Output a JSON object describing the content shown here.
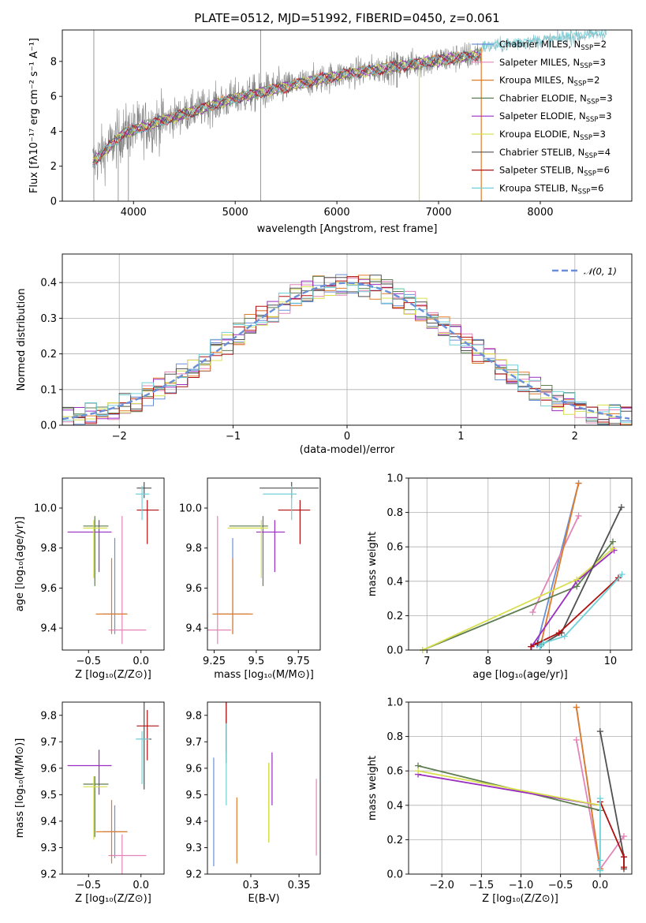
{
  "chart_data": [
    {
      "id": "spectrum",
      "type": "line",
      "title": "PLATE=0512, MJD=51992, FIBERID=0450, z=0.061",
      "xlabel": "wavelength [Angstrom, rest frame]",
      "ylabel": "Flux [fλ10⁻¹⁷ erg cm⁻² s⁻¹ A⁻¹]",
      "xlim": [
        3300,
        8900
      ],
      "ylim": [
        0,
        9.8
      ],
      "xticks": [
        4000,
        5000,
        6000,
        7000,
        8000
      ],
      "yticks": [
        0,
        2,
        4,
        6,
        8
      ],
      "data_color": "#808080",
      "data_range": [
        3600,
        8650
      ],
      "legend_position": "upper-right",
      "series": [
        {
          "name": "Chabrier MILES, N",
          "sub": "SSP",
          "suffix": "=2",
          "color": "#6a8fd8"
        },
        {
          "name": "Salpeter MILES, N",
          "sub": "SSP",
          "suffix": "=3",
          "color": "#e284b8"
        },
        {
          "name": "Kroupa MILES, N",
          "sub": "SSP",
          "suffix": "=2",
          "color": "#e07b28"
        },
        {
          "name": "Chabrier ELODIE, N",
          "sub": "SSP",
          "suffix": "=3",
          "color": "#5e7d50"
        },
        {
          "name": "Salpeter ELODIE, N",
          "sub": "SSP",
          "suffix": "=3",
          "color": "#9a2ec0"
        },
        {
          "name": "Kroupa ELODIE, N",
          "sub": "SSP",
          "suffix": "=3",
          "color": "#d8e050"
        },
        {
          "name": "Chabrier STELIB, N",
          "sub": "SSP",
          "suffix": "=4",
          "color": "#505050"
        },
        {
          "name": "Salpeter STELIB, N",
          "sub": "SSP",
          "suffix": "=6",
          "color": "#b01010"
        },
        {
          "name": "Kroupa STELIB, N",
          "sub": "SSP",
          "suffix": "=6",
          "color": "#70d0d8"
        }
      ]
    },
    {
      "id": "residuals",
      "type": "histogram",
      "xlabel": "(data-model)/error",
      "ylabel": "Normed distribution",
      "xlim": [
        -2.5,
        2.5
      ],
      "ylim": [
        0,
        0.48
      ],
      "xticks": [
        -2,
        -1,
        0,
        1,
        2
      ],
      "yticks": [
        0.0,
        0.1,
        0.2,
        0.3,
        0.4
      ],
      "bin_width": 0.1,
      "legend": "𝒩(0, 1)",
      "legend_position": "upper-right",
      "gaussian_color": "#6a8fd8"
    },
    {
      "id": "age-vs-z",
      "type": "errorbar",
      "xlabel": "Z [log₁₀(Z/Z⊙)]",
      "ylabel": "age  [log₁₀(age/yr)]",
      "xlim": [
        -0.75,
        0.22
      ],
      "ylim": [
        9.29,
        10.15
      ],
      "xticks": [
        -0.5,
        0.0
      ],
      "yticks": [
        9.4,
        9.6,
        9.8,
        10.0
      ],
      "points": [
        {
          "x": -0.25,
          "y": 9.47,
          "xerr": [
            0.12,
            0.12
          ],
          "yerr": [
            0.1,
            0.38
          ],
          "color": "#6a8fd8"
        },
        {
          "x": -0.18,
          "y": 9.39,
          "xerr": [
            0.13,
            0.23
          ],
          "yerr": [
            0.07,
            0.57
          ],
          "color": "#e284b8"
        },
        {
          "x": -0.28,
          "y": 9.47,
          "xerr": [
            0.15,
            0.15
          ],
          "yerr": [
            0.1,
            0.28
          ],
          "color": "#e07b28"
        },
        {
          "x": -0.44,
          "y": 9.91,
          "xerr": [
            0.11,
            0.13
          ],
          "yerr": [
            0.3,
            0.05
          ],
          "color": "#5e7d50"
        },
        {
          "x": -0.4,
          "y": 9.88,
          "xerr": [
            0.3,
            0.12
          ],
          "yerr": [
            0.2,
            0.06
          ],
          "color": "#9a2ec0"
        },
        {
          "x": -0.45,
          "y": 9.9,
          "xerr": [
            0.1,
            0.13
          ],
          "yerr": [
            0.25,
            0.04
          ],
          "color": "#d8e050"
        },
        {
          "x": 0.03,
          "y": 10.1,
          "xerr": [
            0.07,
            0.07
          ],
          "yerr": [
            0.05,
            0.03
          ],
          "color": "#505050"
        },
        {
          "x": 0.06,
          "y": 9.99,
          "xerr": [
            0.1,
            0.11
          ],
          "yerr": [
            0.17,
            0.05
          ],
          "color": "#b01010"
        },
        {
          "x": 0.01,
          "y": 10.07,
          "xerr": [
            0.06,
            0.07
          ],
          "yerr": [
            0.13,
            0.04
          ],
          "color": "#70d0d8"
        }
      ]
    },
    {
      "id": "age-vs-mass",
      "type": "errorbar",
      "xlabel": "mass [log₁₀(M/M⊙)]",
      "ylabel": "",
      "xlim": [
        9.21,
        9.88
      ],
      "ylim": [
        9.29,
        10.15
      ],
      "xticks": [
        9.25,
        9.5,
        9.75
      ],
      "yticks": [
        9.4,
        9.6,
        9.8,
        10.0
      ],
      "points": [
        {
          "x": 9.36,
          "y": 9.47,
          "xerr": [
            0.1,
            0.1
          ],
          "yerr": [
            0.1,
            0.38
          ],
          "color": "#6a8fd8"
        },
        {
          "x": 9.27,
          "y": 9.39,
          "xerr": [
            0.07,
            0.08
          ],
          "yerr": [
            0.07,
            0.57
          ],
          "color": "#e284b8"
        },
        {
          "x": 9.36,
          "y": 9.47,
          "xerr": [
            0.12,
            0.12
          ],
          "yerr": [
            0.1,
            0.28
          ],
          "color": "#e07b28"
        },
        {
          "x": 9.54,
          "y": 9.91,
          "xerr": [
            0.2,
            0.03
          ],
          "yerr": [
            0.3,
            0.05
          ],
          "color": "#5e7d50"
        },
        {
          "x": 9.61,
          "y": 9.88,
          "xerr": [
            0.11,
            0.06
          ],
          "yerr": [
            0.2,
            0.06
          ],
          "color": "#9a2ec0"
        },
        {
          "x": 9.53,
          "y": 9.9,
          "xerr": [
            0.2,
            0.04
          ],
          "yerr": [
            0.25,
            0.04
          ],
          "color": "#d8e050"
        },
        {
          "x": 9.71,
          "y": 10.1,
          "xerr": [
            0.19,
            0.16
          ],
          "yerr": [
            0.05,
            0.03
          ],
          "color": "#505050"
        },
        {
          "x": 9.76,
          "y": 9.99,
          "xerr": [
            0.13,
            0.06
          ],
          "yerr": [
            0.17,
            0.05
          ],
          "color": "#b01010"
        },
        {
          "x": 9.71,
          "y": 10.07,
          "xerr": [
            0.17,
            0.03
          ],
          "yerr": [
            0.13,
            0.04
          ],
          "color": "#70d0d8"
        }
      ]
    },
    {
      "id": "mass-weight-vs-age",
      "type": "line",
      "xlabel": "age  [log₁₀(age/yr)]",
      "ylabel": "mass weight",
      "xlim": [
        6.7,
        10.35
      ],
      "ylim": [
        0,
        1.0
      ],
      "xticks": [
        7,
        8,
        9,
        10
      ],
      "yticks": [
        0.0,
        0.2,
        0.4,
        0.6,
        0.8,
        1.0
      ],
      "grid": true,
      "series": [
        {
          "color": "#6a8fd8",
          "x": [
            8.8,
            9.48
          ],
          "y": [
            0.03,
            0.97
          ]
        },
        {
          "color": "#e284b8",
          "x": [
            8.73,
            9.48
          ],
          "y": [
            0.22,
            0.78
          ]
        },
        {
          "color": "#e07b28",
          "x": [
            8.86,
            9.48
          ],
          "y": [
            0.03,
            0.97
          ]
        },
        {
          "color": "#5e7d50",
          "x": [
            6.93,
            9.45,
            10.04
          ],
          "y": [
            0.0,
            0.37,
            0.63
          ]
        },
        {
          "color": "#9a2ec0",
          "x": [
            8.71,
            9.45,
            10.06
          ],
          "y": [
            0.02,
            0.4,
            0.58
          ]
        },
        {
          "color": "#d8e050",
          "x": [
            6.93,
            9.45,
            10.04
          ],
          "y": [
            0.0,
            0.41,
            0.59
          ]
        },
        {
          "color": "#505050",
          "x": [
            8.87,
            9.2,
            10.18
          ],
          "y": [
            0.03,
            0.1,
            0.83
          ]
        },
        {
          "color": "#b01010",
          "x": [
            8.7,
            8.81,
            9.16,
            10.13
          ],
          "y": [
            0.02,
            0.04,
            0.1,
            0.42
          ]
        },
        {
          "color": "#70d0d8",
          "x": [
            8.85,
            8.9,
            9.25,
            10.19
          ],
          "y": [
            0.02,
            0.04,
            0.08,
            0.44
          ]
        }
      ]
    },
    {
      "id": "mass-vs-z",
      "type": "errorbar",
      "xlabel": "Z [log₁₀(Z/Z⊙)]",
      "ylabel": "mass [log₁₀(M/M⊙)]",
      "xlim": [
        -0.75,
        0.22
      ],
      "ylim": [
        9.2,
        9.85
      ],
      "xticks": [
        -0.5,
        0.0
      ],
      "yticks": [
        9.2,
        9.3,
        9.4,
        9.5,
        9.6,
        9.7,
        9.8
      ],
      "points": [
        {
          "x": -0.25,
          "y": 9.36,
          "xerr": [
            0.12,
            0.12
          ],
          "yerr": [
            0.1,
            0.1
          ],
          "color": "#6a8fd8"
        },
        {
          "x": -0.18,
          "y": 9.27,
          "xerr": [
            0.13,
            0.23
          ],
          "yerr": [
            0.07,
            0.08
          ],
          "color": "#e284b8"
        },
        {
          "x": -0.28,
          "y": 9.36,
          "xerr": [
            0.15,
            0.15
          ],
          "yerr": [
            0.12,
            0.12
          ],
          "color": "#e07b28"
        },
        {
          "x": -0.44,
          "y": 9.54,
          "xerr": [
            0.11,
            0.13
          ],
          "yerr": [
            0.2,
            0.03
          ],
          "color": "#5e7d50"
        },
        {
          "x": -0.4,
          "y": 9.61,
          "xerr": [
            0.3,
            0.12
          ],
          "yerr": [
            0.11,
            0.06
          ],
          "color": "#9a2ec0"
        },
        {
          "x": -0.45,
          "y": 9.53,
          "xerr": [
            0.1,
            0.13
          ],
          "yerr": [
            0.2,
            0.04
          ],
          "color": "#d8e050"
        },
        {
          "x": 0.03,
          "y": 9.71,
          "xerr": [
            0.07,
            0.07
          ],
          "yerr": [
            0.19,
            0.16
          ],
          "color": "#505050"
        },
        {
          "x": 0.06,
          "y": 9.76,
          "xerr": [
            0.1,
            0.11
          ],
          "yerr": [
            0.13,
            0.06
          ],
          "color": "#b01010"
        },
        {
          "x": 0.01,
          "y": 9.71,
          "xerr": [
            0.06,
            0.07
          ],
          "yerr": [
            0.17,
            0.03
          ],
          "color": "#70d0d8"
        }
      ]
    },
    {
      "id": "mass-vs-ebv",
      "type": "errorbar",
      "xlabel": "E(B-V)",
      "ylabel": "",
      "xlim": [
        0.255,
        0.372
      ],
      "ylim": [
        9.2,
        9.85
      ],
      "xticks": [
        0.3,
        0.35
      ],
      "yticks": [
        9.2,
        9.3,
        9.4,
        9.5,
        9.6,
        9.7,
        9.8
      ],
      "points": [
        {
          "x": 0.2615,
          "y": 9.36,
          "yerr": [
            0.13,
            0.28
          ],
          "color": "#6a8fd8"
        },
        {
          "x": 0.368,
          "y": 9.27,
          "yerr": [
            0.0,
            0.29
          ],
          "color": "#e284b8"
        },
        {
          "x": 0.2855,
          "y": 9.36,
          "yerr": [
            0.12,
            0.13
          ],
          "color": "#e07b28"
        },
        {
          "x": 0.3185,
          "y": 9.54,
          "yerr": [
            0.22,
            0.08
          ],
          "color": "#5e7d50"
        },
        {
          "x": 0.322,
          "y": 9.61,
          "yerr": [
            0.15,
            0.05
          ],
          "color": "#9a2ec0"
        },
        {
          "x": 0.3185,
          "y": 9.53,
          "yerr": [
            0.21,
            0.09
          ],
          "color": "#d8e050"
        },
        {
          "x": 0.2745,
          "y": 9.71,
          "yerr": [
            0.09,
            0.14
          ],
          "color": "#505050"
        },
        {
          "x": 0.2745,
          "y": 9.76,
          "yerr": [
            0.1,
            0.09
          ],
          "color": "#b01010"
        },
        {
          "x": 0.2745,
          "y": 9.71,
          "yerr": [
            0.25,
            0.06
          ],
          "color": "#70d0d8"
        }
      ]
    },
    {
      "id": "mass-weight-vs-z",
      "type": "line",
      "xlabel": "Z [log₁₀(Z/Z⊙)]",
      "ylabel": "mass weight",
      "xlim": [
        -2.42,
        0.4
      ],
      "ylim": [
        0,
        1.0
      ],
      "xticks": [
        -2.0,
        -1.5,
        -1.0,
        -0.5,
        0.0
      ],
      "yticks": [
        0.0,
        0.2,
        0.4,
        0.6,
        0.8,
        1.0
      ],
      "grid": true,
      "series": [
        {
          "color": "#6a8fd8",
          "x": [
            -0.3,
            0.0
          ],
          "y": [
            0.97,
            0.03
          ]
        },
        {
          "color": "#e284b8",
          "x": [
            -0.3,
            0.0,
            0.3
          ],
          "y": [
            0.78,
            0.03,
            0.22
          ]
        },
        {
          "color": "#e07b28",
          "x": [
            -0.3,
            0.0
          ],
          "y": [
            0.97,
            0.03
          ]
        },
        {
          "color": "#5e7d50",
          "x": [
            -2.3,
            0.0
          ],
          "y": [
            0.63,
            0.37
          ]
        },
        {
          "color": "#9a2ec0",
          "x": [
            -2.3,
            0.0
          ],
          "y": [
            0.58,
            0.4
          ]
        },
        {
          "color": "#d8e050",
          "x": [
            -2.3,
            0.0
          ],
          "y": [
            0.6,
            0.4
          ]
        },
        {
          "color": "#505050",
          "x": [
            0.0,
            0.3,
            0.3
          ],
          "y": [
            0.83,
            0.1,
            0.03
          ]
        },
        {
          "color": "#b01010",
          "x": [
            0.0,
            0.3,
            0.3
          ],
          "y": [
            0.42,
            0.1,
            0.04
          ]
        },
        {
          "color": "#70d0d8",
          "x": [
            0.0,
            0.0,
            0.0
          ],
          "y": [
            0.44,
            0.08,
            0.02
          ]
        }
      ]
    }
  ]
}
